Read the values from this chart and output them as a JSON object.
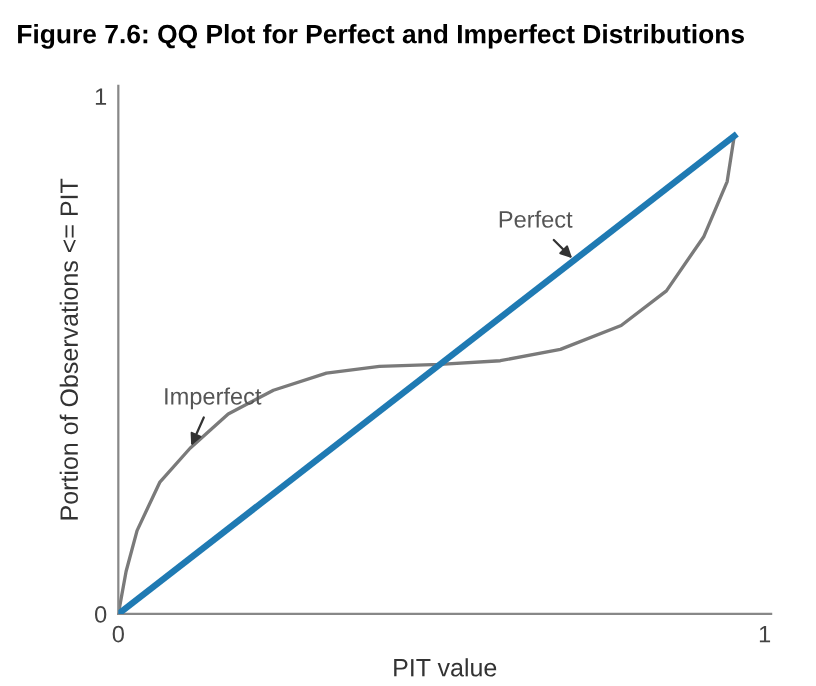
{
  "chart_data": {
    "type": "line",
    "title": "Figure 7.6: QQ Plot for Perfect and Imperfect Distributions",
    "xlabel": "PIT value",
    "ylabel": "Portion of Observations <= PIT",
    "xlim": [
      0,
      1.01
    ],
    "ylim": [
      0,
      1.02
    ],
    "xticks": [
      0,
      1
    ],
    "yticks": [
      0,
      1
    ],
    "grid": false,
    "legend": false,
    "marker": "none",
    "line_style": "solid",
    "series": [
      {
        "name": "Imperfect",
        "color": "#7a7a7a",
        "x": [
          0,
          0.012,
          0.029,
          0.064,
          0.111,
          0.17,
          0.24,
          0.322,
          0.404,
          0.497,
          0.591,
          0.684,
          0.778,
          0.848,
          0.906,
          0.942,
          0.953
        ],
        "values": [
          0,
          0.082,
          0.161,
          0.254,
          0.32,
          0.386,
          0.432,
          0.465,
          0.478,
          0.482,
          0.489,
          0.511,
          0.557,
          0.624,
          0.729,
          0.835,
          0.923
        ]
      },
      {
        "name": "Perfect",
        "color": "#1f7ab3",
        "x": [
          0,
          0.953
        ],
        "values": [
          0,
          0.923
        ]
      }
    ]
  }
}
